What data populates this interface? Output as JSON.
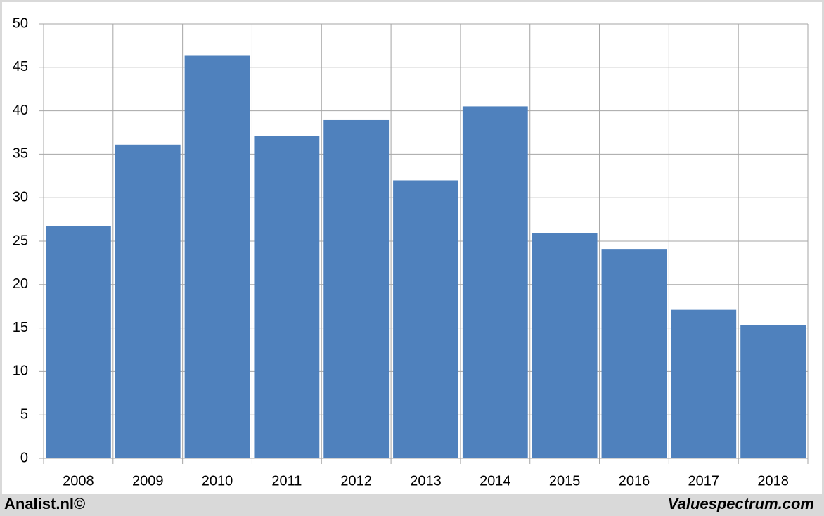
{
  "chart_data": {
    "type": "bar",
    "categories": [
      "2008",
      "2009",
      "2010",
      "2011",
      "2012",
      "2013",
      "2014",
      "2015",
      "2016",
      "2017",
      "2018"
    ],
    "values": [
      26.7,
      36.1,
      46.4,
      37.1,
      39.0,
      32.0,
      40.5,
      25.9,
      24.1,
      17.1,
      15.3
    ],
    "color": "#4f81bd",
    "ylim": [
      0,
      50
    ],
    "yticks": [
      0,
      5,
      10,
      15,
      20,
      25,
      30,
      35,
      40,
      45,
      50
    ],
    "grid": true,
    "credits": [
      "Analist.nl©",
      "Valuespectrum.com"
    ]
  }
}
